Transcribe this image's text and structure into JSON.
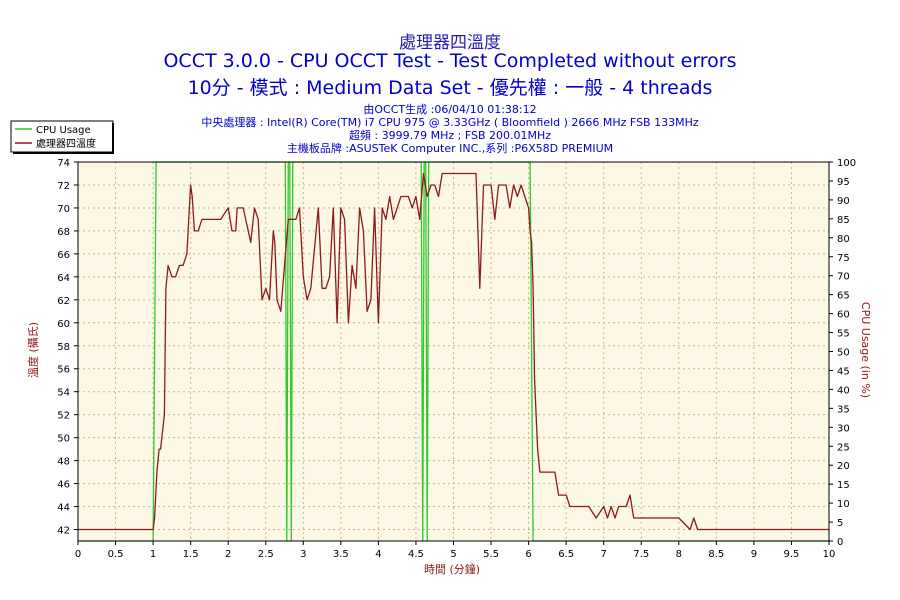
{
  "header": {
    "title": "處理器四溫度",
    "subtitle1": "OCCT 3.0.0 - CPU OCCT Test - Test Completed without errors",
    "subtitle2": "10分 - 模式 : Medium Data Set - 優先權 : 一般 - 4 threads"
  },
  "info": {
    "line1": "由OCCT生成 :06/04/10 01:38:12",
    "line2": "中央處理器 : Intel(R) Core(TM) i7 CPU 975 @ 3.33GHz ( Bloomfield ) 2666 MHz FSB 133MHz",
    "line3": "超頻 : 3999.79 MHz ; FSB 200.01MHz",
    "line4": "主機板品牌 :ASUSTeK Computer INC.,系列 :P6X58D PREMIUM"
  },
  "colors": {
    "plot_bg": "#fdf8e6",
    "grid": "#c8b888",
    "cpu_usage": "#2ec82e",
    "temperature": "#8b1a1a",
    "title": "#1f1fb0"
  },
  "chart_data": {
    "type": "line",
    "xlabel": "時間 (分鐘)",
    "ylabel": "溫度 (攝氏)",
    "y2label": "CPU Usage (in %)",
    "xlim": [
      0,
      10
    ],
    "ylim": [
      41,
      74
    ],
    "y2lim": [
      0,
      100
    ],
    "xticks": [
      0,
      0.5,
      1,
      1.5,
      2,
      2.5,
      3,
      3.5,
      4,
      4.5,
      5,
      5.5,
      6,
      6.5,
      7,
      7.5,
      8,
      8.5,
      9,
      9.5,
      10
    ],
    "yticks": [
      42,
      44,
      46,
      48,
      50,
      52,
      54,
      56,
      58,
      60,
      62,
      64,
      66,
      68,
      70,
      72,
      74
    ],
    "y2ticks": [
      0,
      5,
      10,
      15,
      20,
      25,
      30,
      35,
      40,
      45,
      50,
      55,
      60,
      65,
      70,
      75,
      80,
      85,
      90,
      95,
      100
    ],
    "grid": true,
    "legend_position": "top-left",
    "series": [
      {
        "name": "CPU Usage",
        "axis": "right",
        "x": [
          0,
          1.0,
          1.04,
          1.06,
          1.1,
          2.76,
          2.78,
          2.8,
          2.82,
          2.84,
          2.86,
          2.88,
          2.9,
          4.57,
          4.59,
          4.61,
          4.63,
          4.65,
          4.67,
          6.02,
          6.06,
          6.1,
          10
        ],
        "y": [
          0,
          0,
          100,
          100,
          100,
          100,
          0,
          100,
          100,
          0,
          100,
          100,
          100,
          100,
          0,
          100,
          100,
          0,
          100,
          100,
          0,
          0,
          0
        ]
      },
      {
        "name": "處理器四溫度",
        "axis": "left",
        "x": [
          0,
          1.0,
          1.02,
          1.05,
          1.08,
          1.1,
          1.15,
          1.17,
          1.2,
          1.25,
          1.3,
          1.35,
          1.4,
          1.45,
          1.5,
          1.52,
          1.55,
          1.6,
          1.65,
          1.7,
          1.8,
          1.9,
          2.0,
          2.05,
          2.1,
          2.12,
          2.2,
          2.3,
          2.35,
          2.4,
          2.45,
          2.5,
          2.55,
          2.6,
          2.62,
          2.65,
          2.7,
          2.8,
          2.85,
          2.9,
          2.95,
          3.0,
          3.05,
          3.1,
          3.2,
          3.25,
          3.3,
          3.35,
          3.4,
          3.45,
          3.5,
          3.55,
          3.6,
          3.65,
          3.7,
          3.75,
          3.8,
          3.85,
          3.9,
          3.95,
          4.0,
          4.05,
          4.1,
          4.15,
          4.2,
          4.3,
          4.4,
          4.45,
          4.5,
          4.55,
          4.6,
          4.65,
          4.7,
          4.75,
          4.8,
          4.85,
          4.9,
          5.0,
          5.1,
          5.2,
          5.3,
          5.35,
          5.4,
          5.45,
          5.5,
          5.55,
          5.6,
          5.65,
          5.7,
          5.75,
          5.8,
          5.85,
          5.9,
          5.95,
          6.0,
          6.02,
          6.04,
          6.06,
          6.08,
          6.1,
          6.12,
          6.15,
          6.2,
          6.25,
          6.3,
          6.35,
          6.4,
          6.5,
          6.55,
          6.6,
          6.7,
          6.8,
          6.9,
          7.0,
          7.05,
          7.1,
          7.15,
          7.2,
          7.25,
          7.3,
          7.35,
          7.4,
          7.45,
          7.5,
          7.6,
          7.8,
          8.0,
          8.15,
          8.2,
          8.25,
          8.3,
          8.5,
          9.0,
          9.5,
          10.0
        ],
        "y": [
          42,
          42,
          43,
          47,
          49,
          49,
          52,
          63,
          65,
          64,
          64,
          65,
          65,
          66,
          72,
          71,
          68,
          68,
          69,
          69,
          69,
          69,
          70,
          68,
          68,
          70,
          70,
          67,
          70,
          69,
          62,
          63,
          62,
          68,
          67,
          62,
          61,
          69,
          69,
          69,
          70,
          64,
          62,
          63,
          70,
          63,
          63,
          64,
          70,
          60,
          70,
          69,
          60,
          65,
          63,
          70,
          68,
          61,
          62,
          70,
          60,
          70,
          69,
          71,
          69,
          71,
          71,
          70,
          71,
          69,
          73,
          71,
          72,
          72,
          71,
          73,
          73,
          73,
          73,
          73,
          73,
          63,
          72,
          72,
          72,
          69,
          72,
          72,
          72,
          70,
          72,
          71,
          72,
          71,
          70,
          68,
          67,
          63,
          55,
          52,
          49,
          47,
          47,
          47,
          47,
          47,
          45,
          45,
          44,
          44,
          44,
          44,
          43,
          44,
          43,
          44,
          43,
          44,
          44,
          44,
          45,
          43,
          43,
          43,
          43,
          43,
          43,
          42,
          43,
          42,
          42,
          42,
          42,
          42,
          42
        ]
      }
    ]
  }
}
